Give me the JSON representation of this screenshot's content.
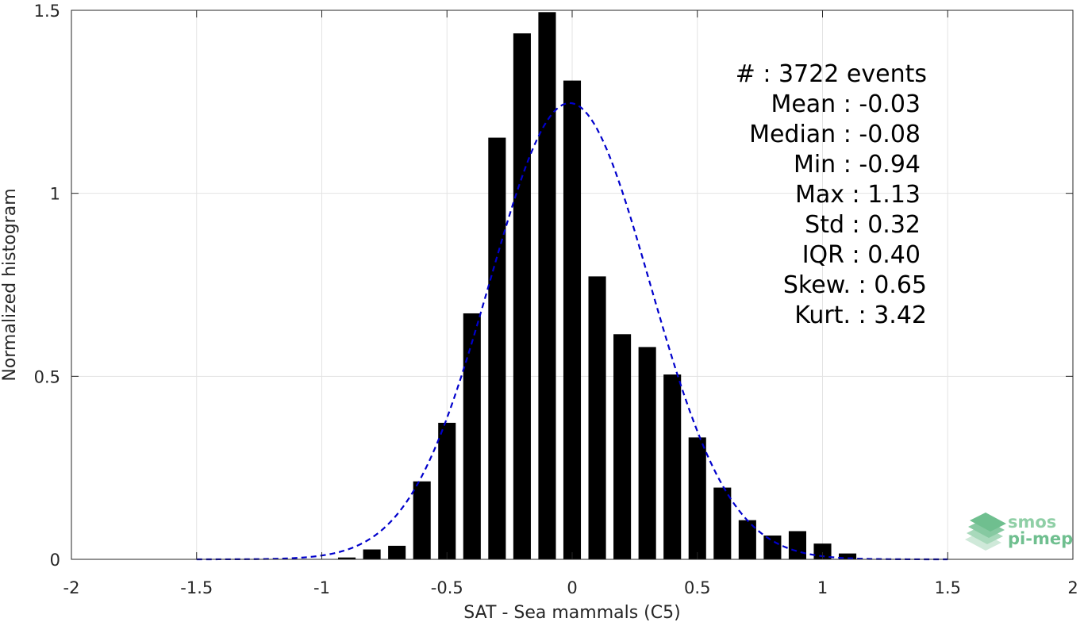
{
  "chart_data": {
    "type": "bar",
    "xlabel": "SAT - Sea mammals (C5)",
    "ylabel": "Normalized histogram",
    "xlim": [
      -2,
      2
    ],
    "ylim": [
      0,
      1.5
    ],
    "x_ticks": [
      -2,
      -1.5,
      -1,
      -0.5,
      0,
      0.5,
      1,
      1.5,
      2
    ],
    "x_tick_labels": [
      "-2",
      "-1.5",
      "-1",
      "-0.5",
      "0",
      "0.5",
      "1",
      "1.5",
      "2"
    ],
    "y_ticks": [
      0,
      0.5,
      1,
      1.5
    ],
    "y_tick_labels": [
      "0",
      "0.5",
      "1",
      "1.5"
    ],
    "grid": true,
    "bar_width": 0.07,
    "bars": {
      "x": [
        -0.9,
        -0.8,
        -0.7,
        -0.6,
        -0.5,
        -0.4,
        -0.3,
        -0.2,
        -0.1,
        0.0,
        0.1,
        0.2,
        0.3,
        0.4,
        0.5,
        0.6,
        0.7,
        0.8,
        0.9,
        1.0,
        1.1
      ],
      "values": [
        0.005,
        0.027,
        0.037,
        0.213,
        0.373,
        0.672,
        1.152,
        1.437,
        1.495,
        1.308,
        0.773,
        0.615,
        0.58,
        0.505,
        0.333,
        0.196,
        0.107,
        0.065,
        0.077,
        0.043,
        0.016
      ],
      "color": "#000000"
    },
    "fit_curve": {
      "style": "dashed",
      "color": "#0000cc",
      "x_range": [
        -1.5,
        1.5
      ],
      "mean": -0.01,
      "std": 0.32
    },
    "stats": [
      "#  : 3722 events",
      "Mean : -0.03",
      "Median : -0.08",
      "Min : -0.94",
      "Max : 1.13",
      "Std : 0.32",
      "IQR : 0.40",
      "Skew. : 0.65",
      "Kurt. : 3.42"
    ],
    "logo": {
      "line1": "smos",
      "line2": "pi-mep"
    }
  }
}
